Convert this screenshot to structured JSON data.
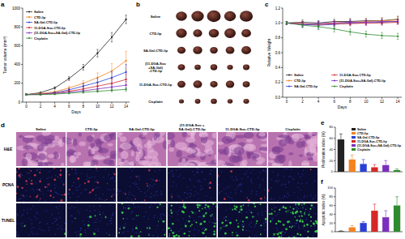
{
  "panel_labels": [
    "a",
    "b",
    "c",
    "d",
    "e",
    "f"
  ],
  "chart_data": [
    {
      "type": "line",
      "x_label": "Days",
      "y_label": "Tumor volume (mm³)",
      "x": [
        0,
        2,
        4,
        6,
        8,
        10,
        12,
        14
      ],
      "xlim": [
        -0.5,
        14.5
      ],
      "xticks": [
        0,
        2,
        4,
        6,
        8,
        10,
        12,
        14
      ],
      "ylim": [
        0,
        1000
      ],
      "yticks": [
        0,
        200,
        400,
        600,
        800,
        1000
      ],
      "grid": false,
      "legend": "top-left",
      "marker": "circle",
      "series": [
        {
          "name": "Saline",
          "color": "#222222",
          "values": [
            80,
            100,
            150,
            250,
            370,
            520,
            690,
            880
          ],
          "errors": [
            5,
            8,
            12,
            20,
            30,
            40,
            50,
            45
          ]
        },
        {
          "name": "CTD-lip",
          "color": "#f58220",
          "values": [
            80,
            90,
            110,
            150,
            200,
            260,
            330,
            440
          ],
          "errors": [
            5,
            6,
            10,
            20,
            30,
            50,
            80,
            100
          ]
        },
        {
          "name": "SA-Gal-CTD-lip",
          "color": "#2a3fd6",
          "values": [
            80,
            85,
            100,
            130,
            170,
            210,
            260,
            320
          ],
          "errors": [
            5,
            6,
            8,
            15,
            25,
            40,
            60,
            80
          ]
        },
        {
          "name": "11-DGA-Suc-CTD-lip",
          "color": "#d62728",
          "values": [
            80,
            85,
            95,
            115,
            140,
            170,
            200,
            240
          ],
          "errors": [
            5,
            6,
            8,
            12,
            20,
            30,
            45,
            60
          ]
        },
        {
          "name": "(11-DGA-Suc+SA-Gal)-CTD-lip",
          "color": "#7b2fbe",
          "values": [
            80,
            80,
            90,
            105,
            120,
            140,
            160,
            180
          ],
          "errors": [
            5,
            5,
            7,
            10,
            15,
            20,
            30,
            40
          ]
        },
        {
          "name": "Cisplatin",
          "color": "#2e8b2e",
          "values": [
            80,
            80,
            85,
            95,
            105,
            115,
            125,
            135
          ],
          "errors": [
            5,
            5,
            6,
            8,
            10,
            12,
            15,
            20
          ]
        }
      ]
    },
    {
      "type": "line",
      "x_label": "Days",
      "y_label": "Relative Weight",
      "x": [
        0,
        2,
        4,
        6,
        8,
        10,
        12,
        14
      ],
      "xlim": [
        -0.5,
        14.5
      ],
      "xticks": [
        0,
        2,
        4,
        6,
        8,
        10,
        12,
        14
      ],
      "ylim": [
        0,
        1.2
      ],
      "yticks": [
        {
          "value": 0,
          "label": "0.0"
        },
        0.2,
        0.4,
        0.6,
        0.8,
        {
          "value": 1,
          "label": "1.0"
        },
        1.2
      ],
      "grid": false,
      "legend": "bottom-left",
      "marker": "circle",
      "series": [
        {
          "name": "Saline",
          "color": "#222222",
          "values": [
            1.0,
            1.01,
            1.0,
            1.02,
            1.02,
            1.03,
            1.03,
            1.05
          ],
          "errors": [
            0.02,
            0.03,
            0.03,
            0.03,
            0.04,
            0.03,
            0.04,
            0.04
          ]
        },
        {
          "name": "CTD-lip",
          "color": "#f58220",
          "values": [
            1.0,
            0.99,
            0.98,
            1.0,
            1.01,
            1.02,
            1.03,
            1.04
          ],
          "errors": [
            0.02,
            0.03,
            0.04,
            0.03,
            0.03,
            0.04,
            0.03,
            0.04
          ]
        },
        {
          "name": "SA-Gal-CTD-lip",
          "color": "#2a3fd6",
          "values": [
            1.0,
            0.98,
            0.97,
            0.98,
            1.0,
            1.0,
            1.01,
            1.02
          ],
          "errors": [
            0.02,
            0.04,
            0.05,
            0.04,
            0.03,
            0.03,
            0.03,
            0.03
          ]
        },
        {
          "name": "11-DGA-Suc-CTD-lip",
          "color": "#d62728",
          "values": [
            1.0,
            0.99,
            0.98,
            0.99,
            0.99,
            1.0,
            1.0,
            1.01
          ],
          "errors": [
            0.02,
            0.03,
            0.03,
            0.03,
            0.03,
            0.03,
            0.03,
            0.03
          ]
        },
        {
          "name": "(11-DGA-Suc+SA-Gal)-CTD-lip",
          "color": "#7b2fbe",
          "values": [
            1.0,
            0.98,
            0.99,
            1.0,
            1.01,
            1.01,
            1.02,
            1.02
          ],
          "errors": [
            0.02,
            0.03,
            0.03,
            0.03,
            0.03,
            0.03,
            0.03,
            0.03
          ]
        },
        {
          "name": "Cisplatin",
          "color": "#2e8b2e",
          "values": [
            1.0,
            0.97,
            0.95,
            0.92,
            0.88,
            0.85,
            0.83,
            0.82
          ],
          "errors": [
            0.02,
            0.03,
            0.04,
            0.04,
            0.04,
            0.04,
            0.04,
            0.04
          ]
        }
      ]
    },
    {
      "type": "bar",
      "y_label": "Proliferation index (%)",
      "categories": [
        "Saline",
        "CTD-lip",
        "SA-Gal-CTD-lip",
        "11-DGA-Suc-CTD-lip",
        "(11-DGA-Suc+SA-Gal)-CTD-lip",
        "Cisplatin"
      ],
      "values": [
        58,
        22,
        14,
        8,
        12,
        3
      ],
      "errors": [
        10,
        8,
        8,
        5,
        8,
        2
      ],
      "colors": [
        "#222222",
        "#f58220",
        "#2a3fd6",
        "#d62728",
        "#7b2fbe",
        "#2e8b2e"
      ],
      "ylim": [
        0,
        80
      ],
      "yticks": [
        0,
        20,
        40,
        60,
        80
      ],
      "grid": false,
      "legend": "top-right",
      "tick_labels": "y"
    },
    {
      "type": "bar",
      "y_label": "Apoptotic index (%)",
      "categories": [
        null,
        null,
        null,
        null,
        null,
        null
      ],
      "values": [
        1,
        10,
        20,
        48,
        33,
        60
      ],
      "errors": [
        1,
        4,
        3,
        15,
        15,
        20
      ],
      "colors": [
        "#222222",
        "#f58220",
        "#2a3fd6",
        "#d62728",
        "#7b2fbe",
        "#2e8b2e"
      ],
      "ylim": [
        0,
        100
      ],
      "yticks": [
        0,
        20,
        40,
        60,
        80,
        100
      ],
      "grid": false,
      "tick_labels": "y"
    }
  ],
  "tumor_photos": {
    "row_labels": [
      [
        "Saline"
      ],
      [
        "CTD-lip"
      ],
      [
        "SA-Gal-CTD-lip"
      ],
      [
        "(11-DGA-Suc",
        "+SA-Gal)",
        "-CTD-lip"
      ],
      [
        "11-DGA-Suc-CTD-lip"
      ],
      [
        "Cisplatin"
      ]
    ]
  },
  "histology": {
    "columns": [
      [
        "Saline"
      ],
      [
        "CTD-lip"
      ],
      [
        "SA-Gal-CTD-lip"
      ],
      [
        "(11-DGA-Suc +",
        "SA-Gal)-CTD-lip"
      ],
      [
        "11-DGA-Suc-CTD-lip"
      ],
      [
        "Cisplatin"
      ]
    ],
    "rows": [
      "H&E",
      "PCNA",
      "TUNEL"
    ]
  }
}
